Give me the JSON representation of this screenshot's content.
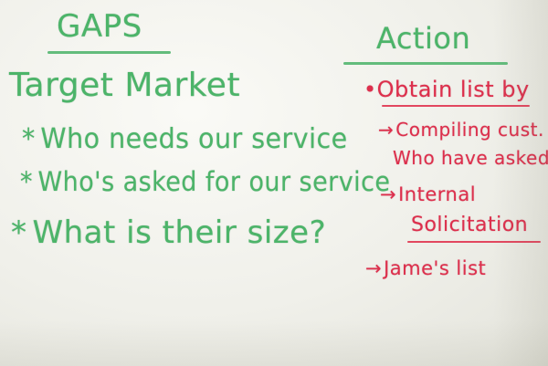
{
  "left_column": {
    "heading": "GAPS",
    "subheading": "Target Market",
    "items": [
      {
        "bullet": "*",
        "text": "Who needs our service"
      },
      {
        "bullet": "*",
        "text": "Who's asked for our service"
      },
      {
        "bullet": "*",
        "text": "What is their size?"
      }
    ]
  },
  "right_column": {
    "heading": "Action",
    "main": "•Obtain list by",
    "steps": [
      {
        "arrow": "→",
        "lines": [
          "Compiling cust.",
          "Who have asked"
        ]
      },
      {
        "arrow": "→",
        "lines": [
          "Internal",
          "Solicitation"
        ]
      },
      {
        "arrow": "→",
        "lines": [
          "Jame's list"
        ]
      }
    ]
  },
  "colors": {
    "board": "#f1f1ec",
    "green_marker": "#4cb469",
    "red_marker": "#dd2f4c"
  }
}
